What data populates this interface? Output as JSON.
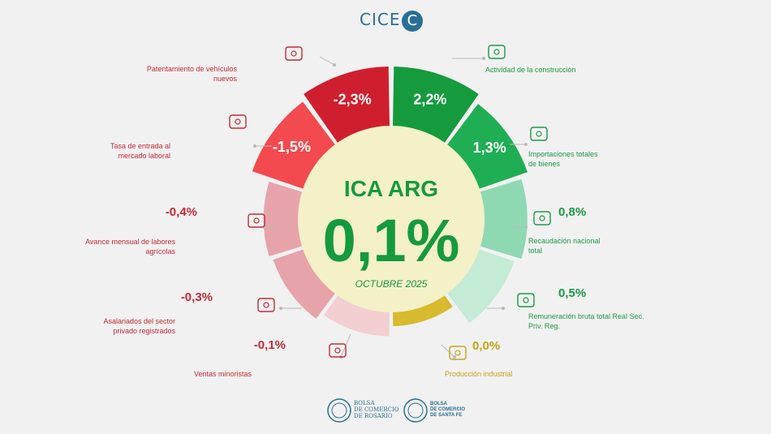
{
  "brand": {
    "logo_text": "CICE",
    "logo_letter": "C"
  },
  "footer": {
    "org1_line1": "BOLSA",
    "org1_line2": "DE COMERCIO",
    "org1_line3": "DE ROSARIO",
    "org2_line1": "BOLSA",
    "org2_line2": "DE COMERCIO",
    "org2_line3": "DE SANTA FE"
  },
  "colors": {
    "pos_strong": "#159a3d",
    "pos_mid": "#1fae53",
    "pos_light": "#8fd9b2",
    "pos_pale": "#c3ebd6",
    "neutral": "#d8ba2e",
    "neg_pale": "#f3cfd2",
    "neg_light": "#e6a4aa",
    "neg_mid": "#f24a4e",
    "neg_strong": "#cf1f2e",
    "center_fill": "#f4f0c8",
    "label_pos": "#1a9a44",
    "label_neg": "#c42a35",
    "label_neutral": "#c8a418"
  },
  "chart_data": {
    "type": "radial-bar",
    "title": "ICA ARG",
    "center_value": "0,1%",
    "center_value_num": 0.1,
    "subtitle": "OCTUBRE 2025",
    "unit": "%",
    "categories": [
      {
        "name": "Actividad de la construcción",
        "value": 2.2,
        "label": "2,2%",
        "icon": "construction-bricks-icon"
      },
      {
        "name": "Importaciones totales de bienes",
        "value": 1.3,
        "label": "1,3%",
        "icon": "globe-trade-icon"
      },
      {
        "name": "Recaudación nacional total",
        "value": 0.8,
        "label": "0,8%",
        "icon": "cash-register-icon"
      },
      {
        "name": "Remuneración bruta total Real Sec. Priv. Reg.",
        "value": 0.5,
        "label": "0,5%",
        "icon": "salary-chart-icon"
      },
      {
        "name": "Producción industrial",
        "value": 0.0,
        "label": "0,0%",
        "icon": "gears-helmet-icon"
      },
      {
        "name": "Ventas minoristas",
        "value": -0.1,
        "label": "-0,1%",
        "icon": "shopping-hand-icon"
      },
      {
        "name": "Asalariados del sector privado registrados",
        "value": -0.3,
        "label": "-0,3%",
        "icon": "workers-icon"
      },
      {
        "name": "Avance mensual de labores agrícolas",
        "value": -0.4,
        "label": "-0,4%",
        "icon": "farm-field-icon"
      },
      {
        "name": "Tasa de entrada al mercado laboral",
        "value": -1.5,
        "label": "-1,5%",
        "icon": "people-network-icon"
      },
      {
        "name": "Patentamiento de vehículos nuevos",
        "value": -2.3,
        "label": "-2,3%",
        "icon": "car-icon"
      }
    ]
  }
}
